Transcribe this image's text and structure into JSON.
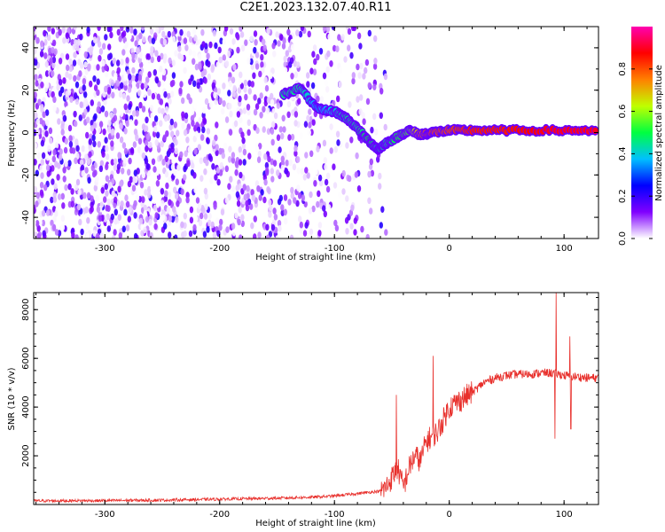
{
  "title": "C2E1.2023.132.07.40.R11",
  "colors": {
    "snr_line": "#e8302c",
    "spectrogram_background": "#7a1ff0",
    "colorbar_stops": [
      "#ffffff",
      "#8000ff",
      "#0000ff",
      "#00c0ff",
      "#00ff40",
      "#c0ff00",
      "#ff8000",
      "#ff0000",
      "#ff00b0"
    ]
  },
  "chart_data": [
    {
      "type": "heatmap",
      "xlabel": "Height of straight line (km)",
      "ylabel": "Frequency (Hz)",
      "xlim": [
        -362,
        130
      ],
      "ylim": [
        -50,
        50
      ],
      "xticks": [
        -300,
        -200,
        -100,
        0,
        100
      ],
      "yticks": [
        -40,
        -20,
        0,
        20,
        40
      ],
      "colorbar": {
        "label": "Normalized spectral amplitude",
        "range": [
          0,
          1
        ],
        "ticks": [
          "0.0",
          "0.2",
          "0.4",
          "0.6",
          "0.8"
        ],
        "colormap": "white-violet-blue-cyan-green-yellow-orange-red-magenta"
      },
      "ridge": {
        "description_points_x": [
          -145,
          -130,
          -115,
          -100,
          -90,
          -80,
          -70,
          -62,
          -55,
          -45,
          -35,
          -25,
          -15,
          0,
          20,
          50,
          90,
          130
        ],
        "frequency_hz": [
          18,
          21,
          11,
          10,
          7,
          2,
          -4,
          -8,
          -5,
          -2,
          1,
          -1,
          0,
          1,
          1,
          1,
          1,
          1
        ],
        "amplitude": [
          0.45,
          0.45,
          0.35,
          0.4,
          0.45,
          0.45,
          0.5,
          0.45,
          0.45,
          0.5,
          0.55,
          0.75,
          0.8,
          0.8,
          0.85,
          0.85,
          0.9,
          0.9
        ]
      },
      "noise_region_x": [
        -362,
        -55
      ]
    },
    {
      "type": "line",
      "xlabel": "Height of straight line (km)",
      "ylabel": "SNR (10 * v/v)",
      "xlim": [
        -362,
        130
      ],
      "ylim": [
        0,
        8700
      ],
      "xticks": [
        -300,
        -200,
        -100,
        0,
        100
      ],
      "yticks": [
        2000,
        4000,
        6000,
        8000
      ],
      "series": [
        {
          "x": [
            -362,
            -300,
            -250,
            -200,
            -150,
            -120,
            -100,
            -80,
            -70,
            -60,
            -55,
            -50,
            -45,
            -40,
            -35,
            -30,
            -25,
            -20,
            -15,
            -10,
            0,
            10,
            20,
            30,
            40,
            50,
            60,
            70,
            80,
            90,
            100,
            110,
            120,
            130
          ],
          "values": [
            150,
            160,
            180,
            220,
            260,
            300,
            350,
            450,
            500,
            550,
            700,
            1100,
            1500,
            700,
            1500,
            2000,
            1800,
            2600,
            2800,
            3000,
            4000,
            4300,
            4600,
            5000,
            5200,
            5300,
            5350,
            5350,
            5400,
            5400,
            5300,
            5250,
            5200,
            5200
          ],
          "spikes": [
            {
              "x": -46,
              "y": 4500
            },
            {
              "x": -14,
              "y": 6100
            },
            {
              "x": 93,
              "y": 8700
            },
            {
              "x": 92,
              "y": 2700
            },
            {
              "x": 105,
              "y": 6900
            },
            {
              "x": 106,
              "y": 3100
            }
          ]
        }
      ]
    }
  ]
}
